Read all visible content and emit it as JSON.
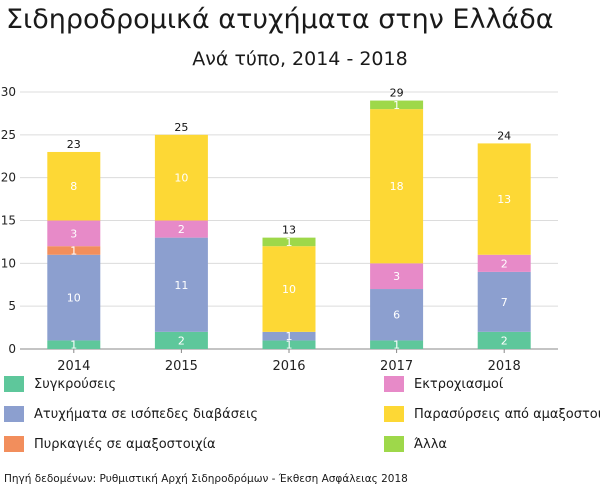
{
  "title": "Σιδηροδρομικά ατυχήματα στην Ελλάδα",
  "subtitle": "Ανά τύπο, 2014 - 2018",
  "source": "Πηγή δεδομένων:  Ρυθμιστική Αρχή Σιδηροδρόμων - Έκθεση Ασφάλειας 2018",
  "chart_data": {
    "type": "bar",
    "stacked": true,
    "categories": [
      "2014",
      "2015",
      "2016",
      "2017",
      "2018"
    ],
    "ylim": [
      0,
      30
    ],
    "yticks": [
      0,
      5,
      10,
      15,
      20,
      25,
      30
    ],
    "grid": true,
    "legend_position": "bottom",
    "totals": [
      23,
      25,
      13,
      29,
      24
    ],
    "series": [
      {
        "name": "Συγκρούσεις",
        "color": "#5ec79b",
        "values": [
          1,
          2,
          1,
          1,
          2
        ]
      },
      {
        "name": "Ατυχήματα σε ισόπεδες διαβάσεις",
        "color": "#8c9fcf",
        "values": [
          10,
          11,
          1,
          6,
          7
        ]
      },
      {
        "name": "Πυρκαγιές σε αμαξοστοιχία",
        "color": "#f28e5c",
        "values": [
          1,
          0,
          0,
          0,
          0
        ]
      },
      {
        "name": "Εκτροχιασμοί",
        "color": "#e78ac8",
        "values": [
          3,
          2,
          0,
          3,
          2
        ]
      },
      {
        "name": "Παρασύρσεις από αμαξοστοιχίες",
        "color": "#fdd835",
        "values": [
          8,
          10,
          10,
          18,
          13
        ]
      },
      {
        "name": "Άλλα",
        "color": "#9ed84a",
        "values": [
          0,
          0,
          1,
          1,
          0
        ]
      }
    ]
  }
}
